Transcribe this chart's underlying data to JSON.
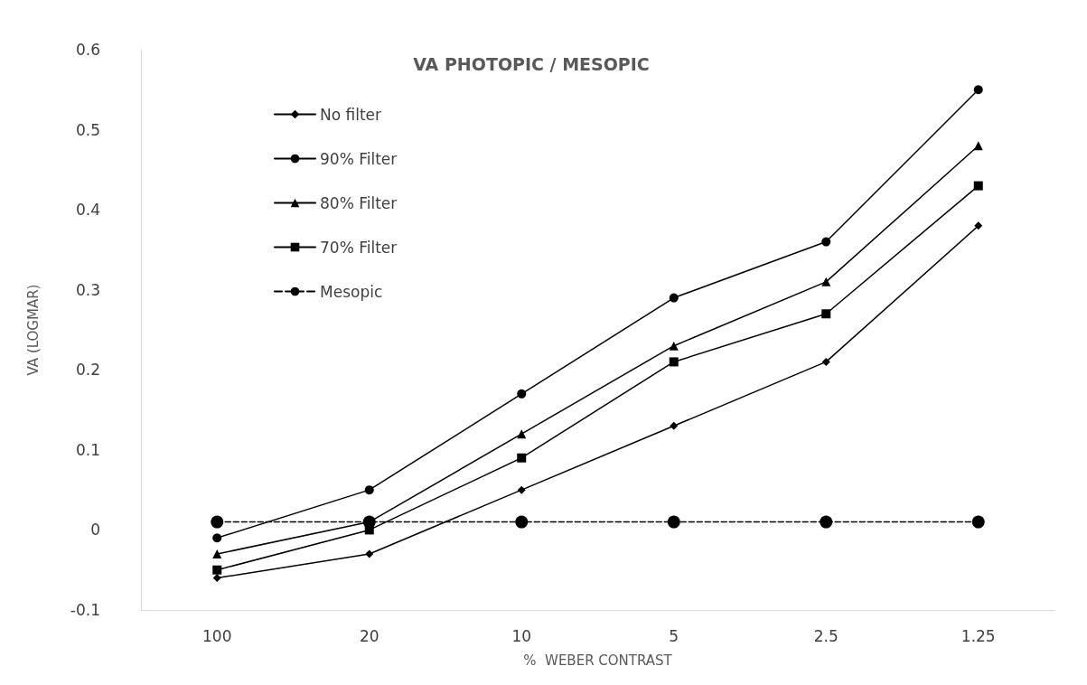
{
  "chart_data": {
    "type": "line",
    "title": "VA PHOTOPIC / MESOPIC",
    "xlabel": "%  WEBER CONTRAST",
    "ylabel": "VA (LOGMAR)",
    "categories": [
      "100",
      "20",
      "10",
      "5",
      "2.5",
      "1.25"
    ],
    "series": [
      {
        "name": "No filter",
        "color": "#000000",
        "marker": "diamond",
        "line_style": "solid",
        "values": [
          -0.06,
          -0.03,
          0.05,
          0.13,
          0.21,
          0.38
        ]
      },
      {
        "name": "90% Filter",
        "color": "#000000",
        "marker": "circle",
        "line_style": "solid",
        "values": [
          -0.01,
          0.05,
          0.17,
          0.29,
          0.36,
          0.55
        ]
      },
      {
        "name": "80% Filter",
        "color": "#000000",
        "marker": "triangle",
        "line_style": "solid",
        "values": [
          -0.03,
          0.01,
          0.12,
          0.23,
          0.31,
          0.48
        ]
      },
      {
        "name": "70% Filter",
        "color": "#000000",
        "marker": "square",
        "line_style": "solid",
        "values": [
          -0.05,
          0.0,
          0.09,
          0.21,
          0.27,
          0.43
        ]
      },
      {
        "name": "Mesopic",
        "color": "#000000",
        "marker": "circle",
        "line_style": "dashed",
        "values": [
          0.01,
          0.01,
          0.01,
          0.01,
          0.01,
          0.01
        ]
      }
    ],
    "ylim": [
      -0.1,
      0.6
    ],
    "yticks": [
      -0.1,
      0,
      0.1,
      0.2,
      0.3,
      0.4,
      0.5,
      0.6
    ],
    "grid": false,
    "legend": "top left"
  }
}
